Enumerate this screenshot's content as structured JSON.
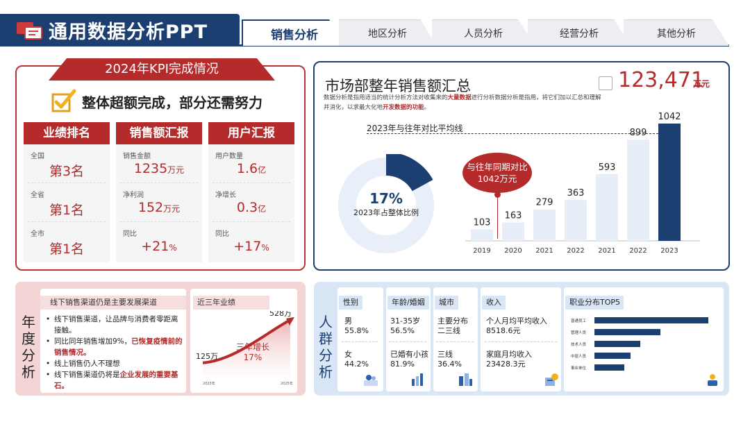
{
  "header": {
    "app_title": "通用数据分析PPT",
    "tabs": [
      {
        "label": "销售分析",
        "active": true
      },
      {
        "label": "地区分析",
        "active": false
      },
      {
        "label": "人员分析",
        "active": false
      },
      {
        "label": "经营分析",
        "active": false
      },
      {
        "label": "其他分析",
        "active": false
      }
    ]
  },
  "kpi": {
    "banner": "2024年KPI完成情况",
    "headline": "整体超额完成，部分还需努力",
    "columns": [
      {
        "header": "业绩排名",
        "cells": [
          {
            "label": "全国",
            "value": "第3名",
            "unit": ""
          },
          {
            "label": "全省",
            "value": "第1名",
            "unit": ""
          },
          {
            "label": "全市",
            "value": "第1名",
            "unit": ""
          }
        ]
      },
      {
        "header": "销售额汇报",
        "cells": [
          {
            "label": "销售金额",
            "value": "1235",
            "unit": "万元"
          },
          {
            "label": "净利润",
            "value": "152",
            "unit": "万元"
          },
          {
            "label": "同比",
            "value": "+21",
            "unit": "%"
          }
        ]
      },
      {
        "header": "用户汇报",
        "cells": [
          {
            "label": "用户数量",
            "value": "1.6",
            "unit": "亿"
          },
          {
            "label": "净增长",
            "value": "0.3",
            "unit": "亿"
          },
          {
            "label": "同比",
            "value": "+17",
            "unit": "%"
          }
        ]
      }
    ]
  },
  "market": {
    "title": "市场部整年销售额汇总",
    "desc_part1": "数据分析是指用适当的统计分析方法对收集来的",
    "desc_bold1": "大量数据",
    "desc_part2": "进行分析数据分析是指用，将它们加以汇总和理解并消化，以求最大化地",
    "desc_bold2": "开发数据的功能",
    "desc_part3": "。",
    "total_value": "123,471",
    "total_unit": "万元",
    "compare_label": "2023年与往年对比平均线",
    "donut_percent": "17%",
    "donut_label": "2023年占整体比例",
    "yoy_line1": "与往年同期对比",
    "yoy_line2": "1042万元",
    "colors": {
      "accent_red": "#b52a2a",
      "navy": "#1c3f72",
      "light_bar": "#e8eef7"
    }
  },
  "chart_data": [
    {
      "type": "bar",
      "categories": [
        "2019",
        "2020",
        "2021",
        "2022",
        "2021",
        "2022",
        "2023"
      ],
      "values": [
        103,
        163,
        279,
        363,
        593,
        899,
        1042
      ],
      "highlight_index": 6
    },
    {
      "type": "pie",
      "values": [
        17,
        83
      ],
      "highlight_index": 0
    },
    {
      "type": "line",
      "title": "近三年业绩",
      "x": [
        "2023年",
        "2025年"
      ],
      "values": [
        125,
        528
      ],
      "start_label": "125万",
      "end_label": "528万",
      "annotation_line1": "三年增长",
      "annotation_line2": "17%"
    },
    {
      "type": "bar",
      "title": "职业分布TOP5",
      "categories": [
        "普通员工",
        "管理人员",
        "技术人员",
        "中层人员",
        "事业单位"
      ],
      "values": [
        100,
        58,
        40,
        32,
        26
      ]
    }
  ],
  "annual": {
    "side_label": "年度分析",
    "note_title": "线下销售渠道仍是主要发展渠道",
    "bullets": [
      {
        "text": "线下销售渠道，让品牌与消费者零距离接触。",
        "bold": ""
      },
      {
        "text": "同比同年销售增加9%，",
        "bold": "已恢复疫情前的销售情况。"
      },
      {
        "text": "线上销售仍人不理想",
        "bold": ""
      },
      {
        "text": "线下销售渠道仍将是",
        "bold": "企业发展的重要基石。"
      }
    ]
  },
  "crowd": {
    "side_label": "人群分析",
    "gender": {
      "tag": "性别",
      "items": [
        {
          "name": "男",
          "value": "55.8%"
        },
        {
          "name": "女",
          "value": "44.2%"
        }
      ]
    },
    "age": {
      "tag": "年龄/婚姻",
      "items": [
        {
          "name": "31-35岁",
          "value": "56.5%"
        },
        {
          "name": "已婚有小孩",
          "value": "81.9%"
        }
      ]
    },
    "city": {
      "tag": "城市",
      "items": [
        {
          "name": "主要分布",
          "value": "二三线"
        },
        {
          "name": "三线",
          "value": "36.4%"
        }
      ]
    },
    "income": {
      "tag": "收入",
      "items": [
        {
          "name": "个人月均平均收入",
          "value": "8518.6元"
        },
        {
          "name": "家庭月均收入",
          "value": "23428.3元"
        }
      ]
    },
    "job_title": "职业分布TOP5",
    "icons": [
      "people-illustration-icon",
      "chart-illustration-icon",
      "city-illustration-icon",
      "money-illustration-icon",
      "analyst-illustration-icon"
    ]
  }
}
